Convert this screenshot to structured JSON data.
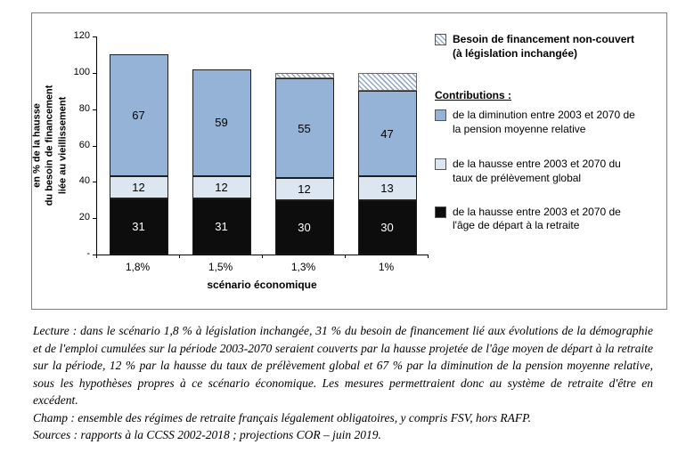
{
  "chart_data": {
    "type": "bar",
    "stacked": true,
    "categories": [
      "1,8%",
      "1,5%",
      "1,3%",
      "1%"
    ],
    "series": [
      {
        "name": "de la hausse entre 2003 et 2070 de l'âge de départ à la retraite",
        "color": "#0d0d0d",
        "label_color": "#ffffff",
        "values": [
          31,
          31,
          30,
          30
        ]
      },
      {
        "name": "de la hausse entre 2003 et 2070 du taux de prélèvement global",
        "color": "#dce6f1",
        "values": [
          12,
          12,
          12,
          13
        ]
      },
      {
        "name": "de la diminution entre 2003 et 2070 de la pension moyenne relative",
        "color": "#95b3d7",
        "values": [
          67,
          59,
          55,
          47
        ]
      },
      {
        "name": "Besoin de financement non-couvert (à législation inchangée)",
        "pattern": "hatch",
        "show_labels": false,
        "values": [
          0,
          0,
          3,
          10
        ]
      }
    ],
    "xlabel": "scénario économique",
    "ylabel": "en % de la hausse du besoin de financement liée au vieillissement",
    "ylabel_lines": [
      "en % de la hausse",
      "du besoin de financement",
      "liée au vieillissement"
    ],
    "ylim": [
      0,
      120
    ],
    "ytick_step": 20,
    "ytick_labels": [
      "120",
      "100",
      "80",
      "60",
      "40",
      "20",
      "-"
    ],
    "grid": false,
    "legend_position": "right"
  },
  "legend": {
    "uncovered_label": "Besoin de financement non-couvert (à législation inchangée)",
    "contributions_title": "Contributions :",
    "items": [
      {
        "label": "de la diminution entre 2003 et 2070 de la pension moyenne relative",
        "color": "#95b3d7"
      },
      {
        "label": "de la hausse entre 2003 et 2070 du taux de prélèvement global",
        "color": "#dce6f1"
      },
      {
        "label": "de la hausse entre 2003 et 2070 de l'âge de départ à la retraite",
        "color": "#0d0d0d"
      }
    ]
  },
  "notes": {
    "lecture": "Lecture : dans le scénario 1,8 % à législation inchangée, 31 % du besoin de financement lié aux évolutions de la démographie et de l'emploi cumulées sur la période 2003-2070 seraient couverts par la hausse projetée de l'âge moyen de départ à la retraite sur la période, 12 % par la hausse du taux de prélèvement global et 67 % par la diminution de la pension moyenne relative, sous les hypothèses propres à ce scénario économique. Les mesures permettraient donc au système de retraite d'être en excédent.",
    "champ": "Champ : ensemble des régimes de retraite français légalement obligatoires, y compris FSV, hors RAFP.",
    "sources": "Sources : rapports à la CCSS 2002-2018 ; projections COR – juin 2019."
  }
}
